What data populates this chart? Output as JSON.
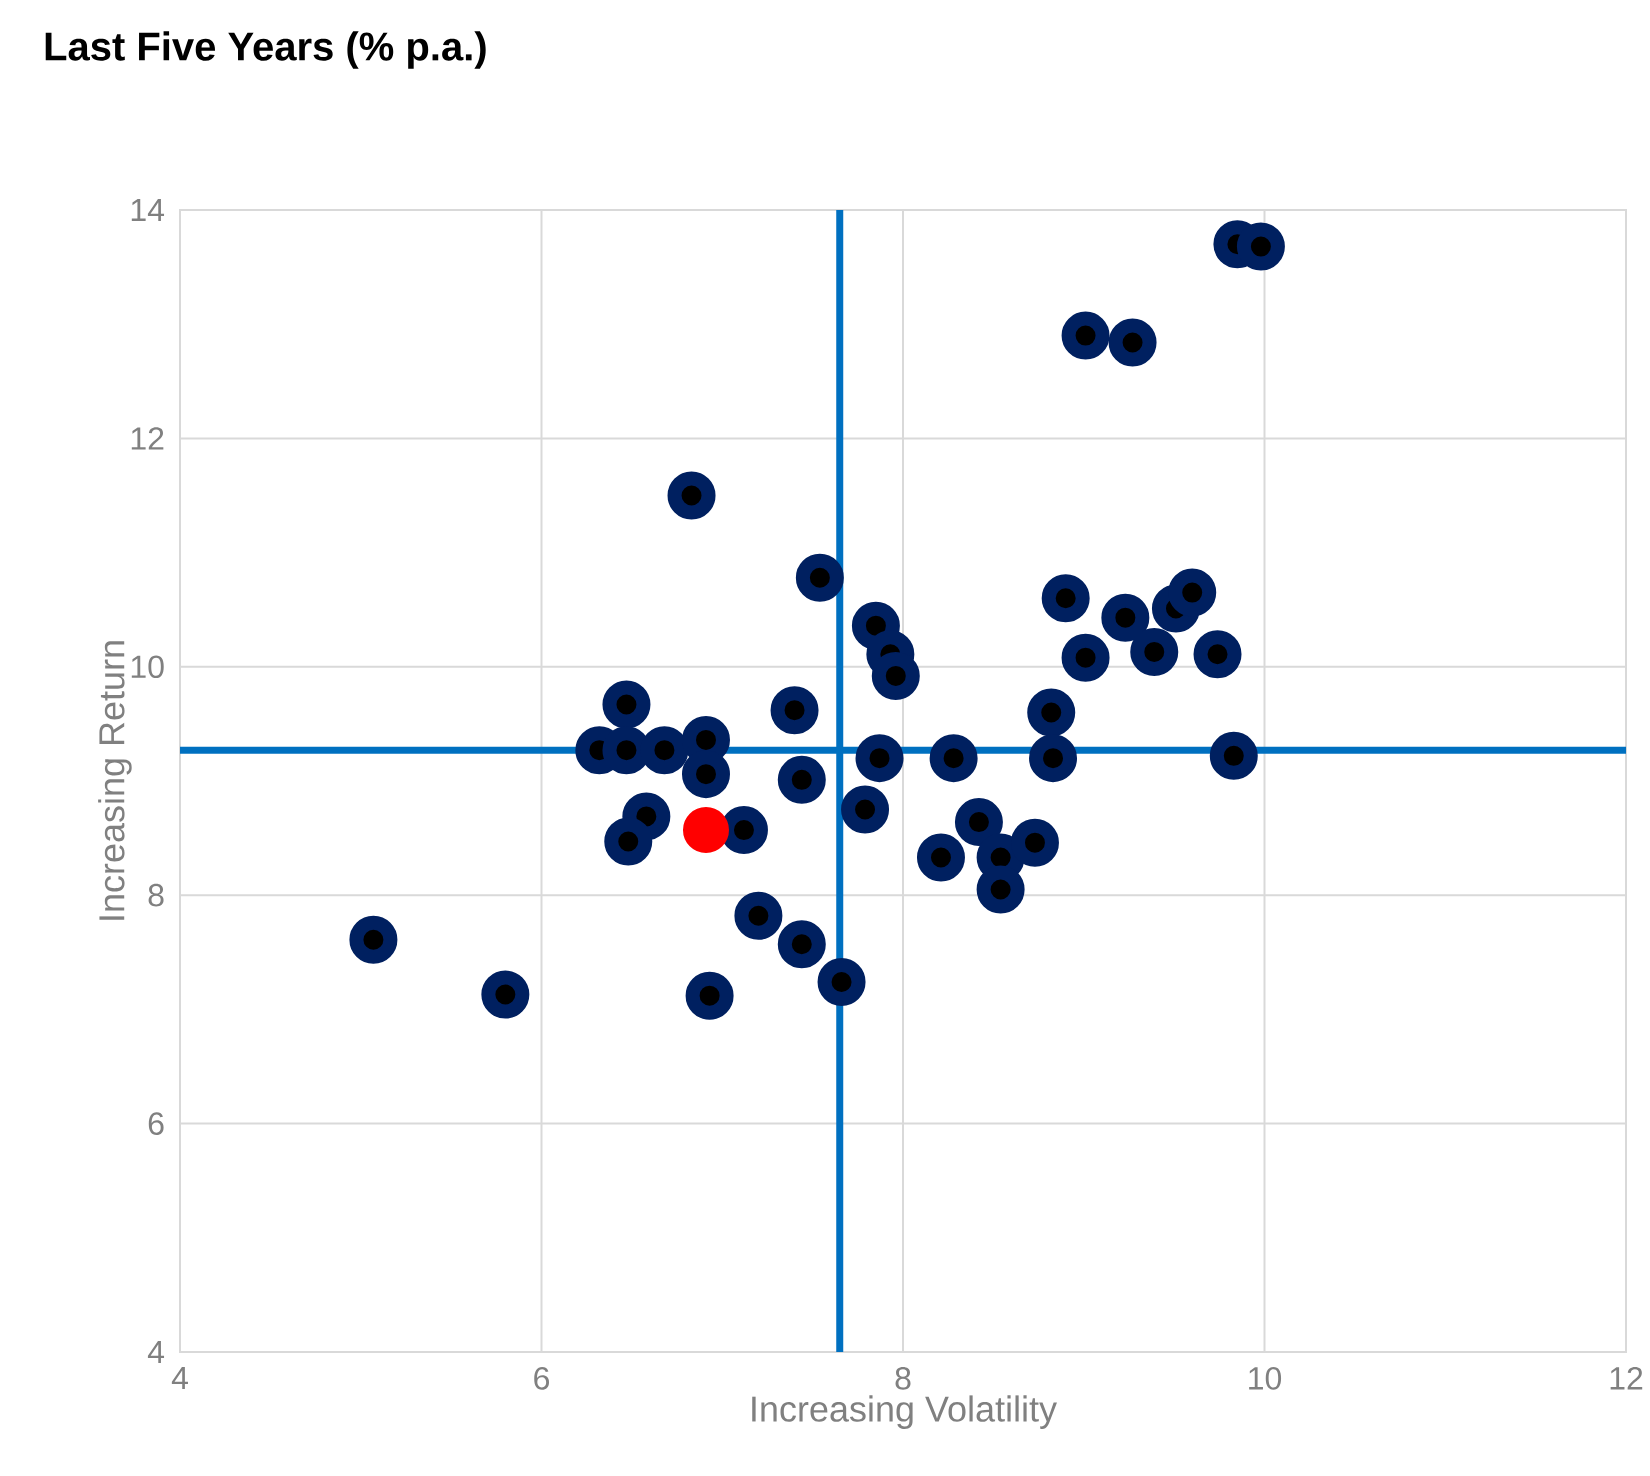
{
  "chart_data": {
    "type": "scatter",
    "title": "Last Five Years (% p.a.)",
    "xlabel": "Increasing Volatility",
    "ylabel": "Increasing Return",
    "xlim": [
      4,
      12
    ],
    "xticks": [
      4,
      6,
      8,
      10,
      12
    ],
    "ylim": [
      4,
      14
    ],
    "yticks": [
      4,
      6,
      8,
      10,
      12,
      14
    ],
    "grid": true,
    "marker": "circle",
    "series": [
      {
        "color": "#002060",
        "x": [
          5.07,
          5.8,
          6.83,
          7.54,
          7.85,
          7.93,
          7.96,
          6.47,
          7.4,
          6.32,
          6.47,
          6.68,
          6.91,
          6.91,
          7.44,
          6.58,
          6.48,
          7.12,
          7.2,
          7.44,
          7.66,
          6.93,
          7.87,
          8.28,
          7.79,
          8.21,
          8.42,
          8.54,
          8.54,
          8.73,
          8.82,
          8.83,
          8.9,
          9.01,
          9.23,
          9.39,
          9.51,
          9.6,
          9.74,
          9.83,
          9.01,
          9.27,
          9.85,
          9.98
        ],
        "values": [
          7.61,
          7.13,
          11.5,
          10.78,
          10.36,
          10.11,
          9.92,
          9.67,
          9.62,
          9.27,
          9.27,
          9.27,
          9.36,
          9.06,
          9.01,
          8.69,
          8.47,
          8.57,
          7.82,
          7.57,
          7.24,
          7.12,
          9.2,
          9.2,
          8.75,
          8.33,
          8.64,
          8.33,
          8.05,
          8.46,
          9.6,
          9.2,
          10.6,
          10.08,
          10.43,
          10.13,
          10.51,
          10.65,
          10.11,
          9.22,
          12.9,
          12.84,
          13.7,
          13.68
        ]
      },
      {
        "color": "#ff0000",
        "x": [
          6.91
        ],
        "values": [
          8.57
        ]
      }
    ],
    "ref_lines": [
      {
        "axis": "x",
        "value": 7.65,
        "color": "#0070c0"
      },
      {
        "axis": "y",
        "value": 9.27,
        "color": "#0070c0"
      }
    ]
  }
}
